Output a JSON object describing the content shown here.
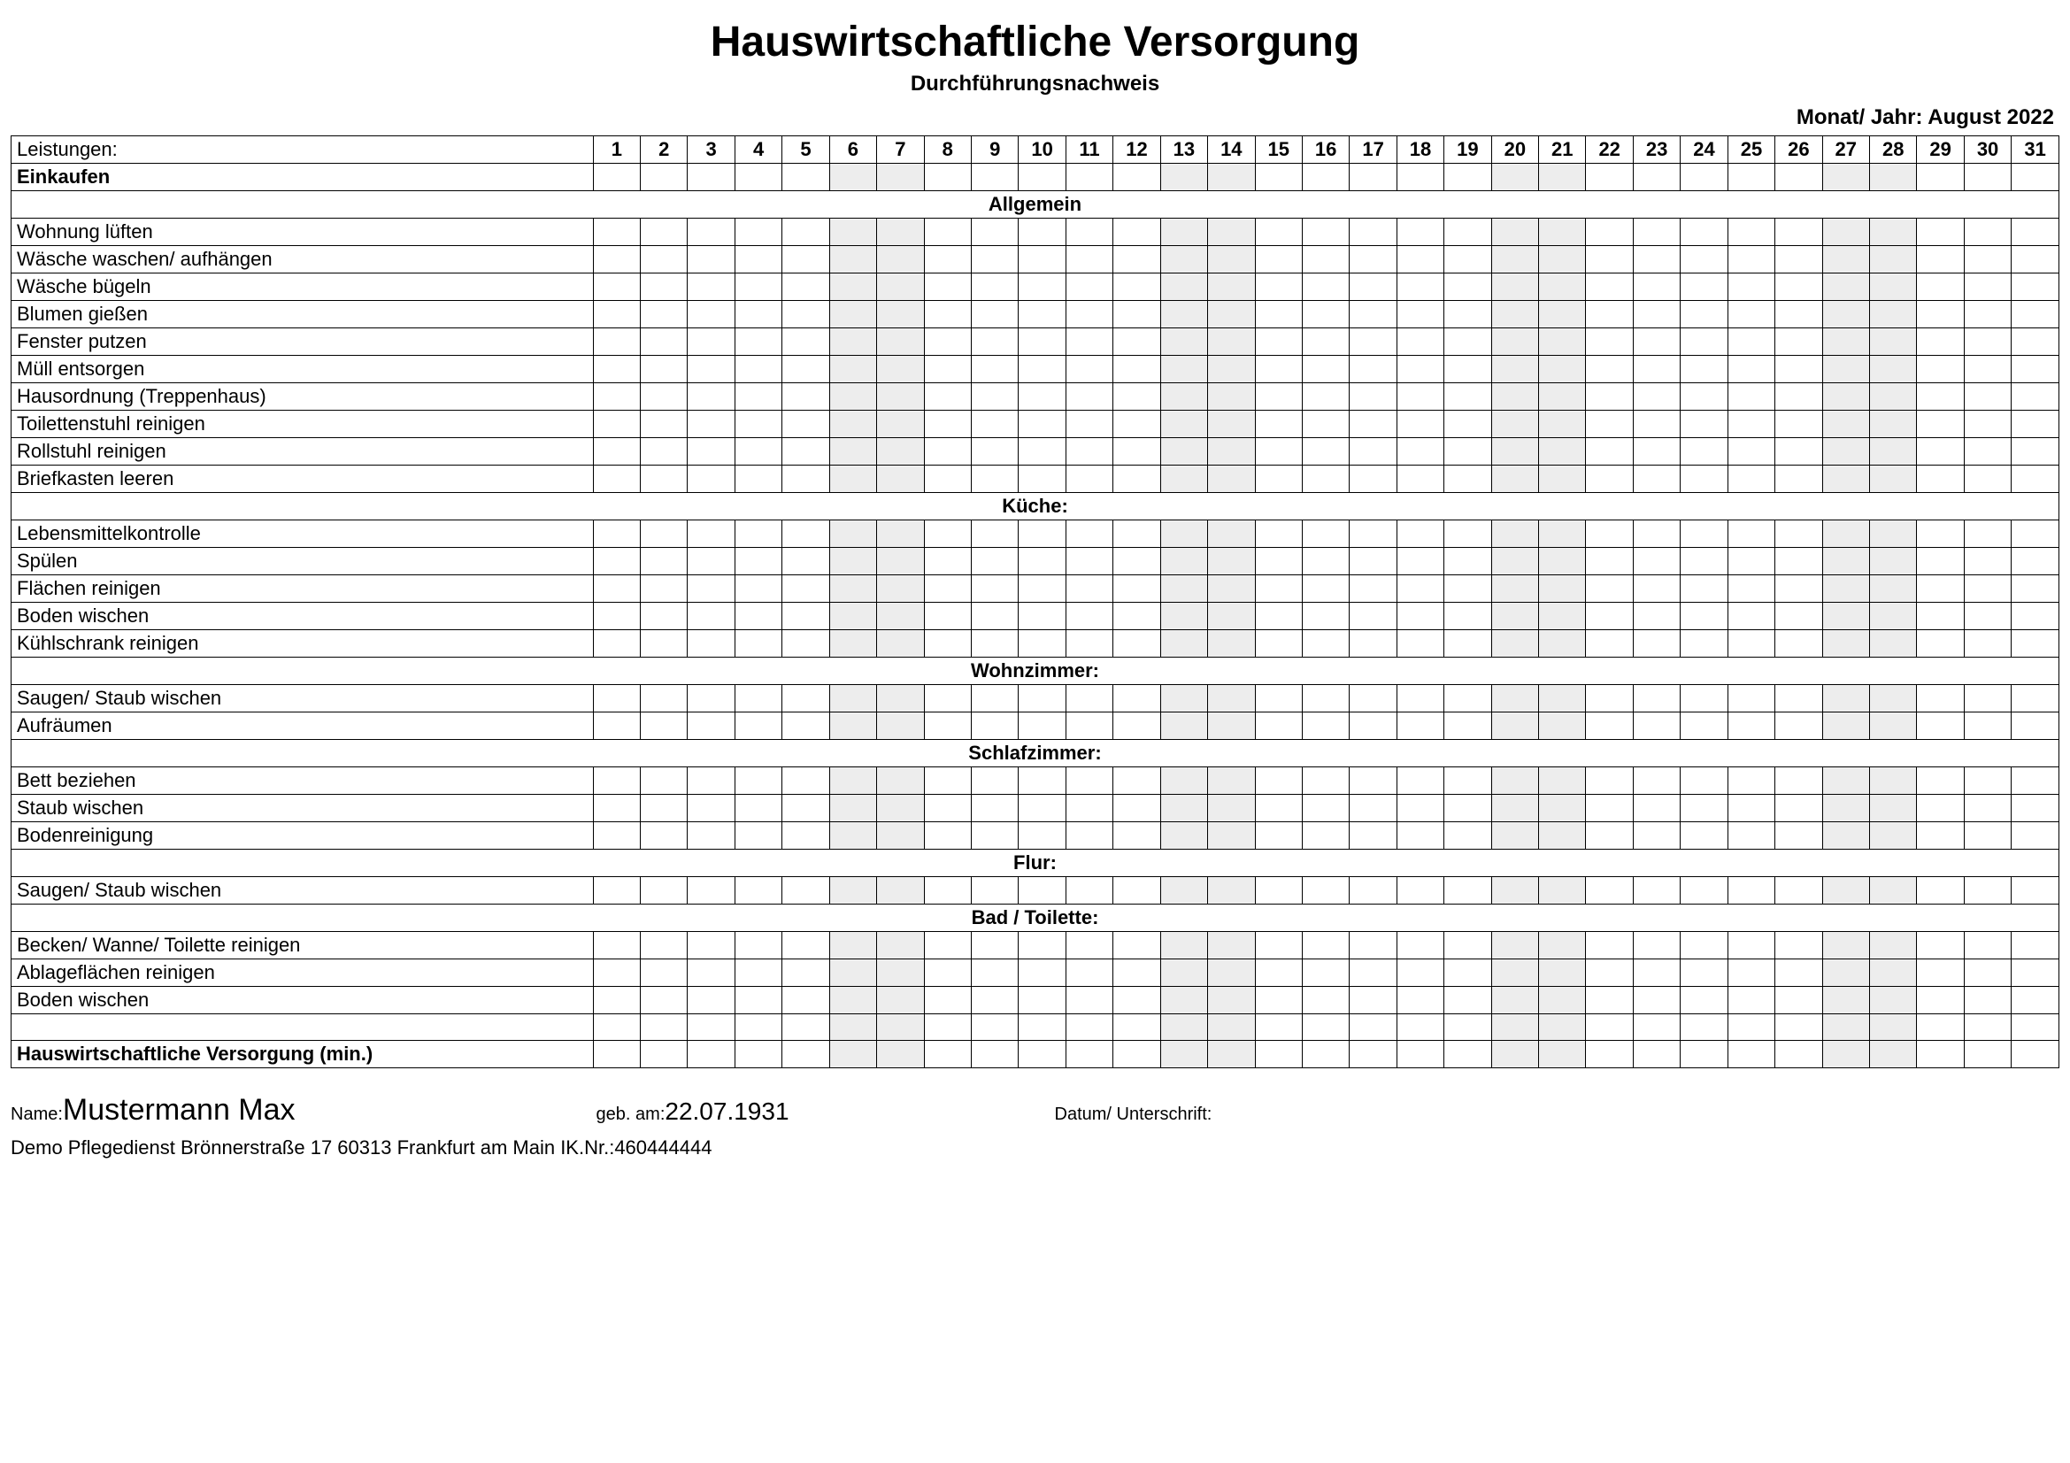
{
  "header": {
    "title": "Hauswirtschaftliche Versorgung",
    "subtitle": "Durchführungsnachweis",
    "month_label": "Monat/ Jahr: ",
    "month_value": "August 2022"
  },
  "table": {
    "col_label": "Leistungen:",
    "days": [
      "1",
      "2",
      "3",
      "4",
      "5",
      "6",
      "7",
      "8",
      "9",
      "10",
      "11",
      "12",
      "13",
      "14",
      "15",
      "16",
      "17",
      "18",
      "19",
      "20",
      "21",
      "22",
      "23",
      "24",
      "25",
      "26",
      "27",
      "28",
      "29",
      "30",
      "31"
    ],
    "shaded_days": [
      6,
      7,
      13,
      14,
      20,
      21,
      27,
      28
    ],
    "first_row": {
      "label": "Einkaufen",
      "bold": true
    },
    "sections": [
      {
        "title": "Allgemein",
        "rows": [
          "Wohnung lüften",
          "Wäsche waschen/ aufhängen",
          "Wäsche bügeln",
          "Blumen gießen",
          "Fenster putzen",
          "Müll entsorgen",
          "Hausordnung (Treppenhaus)",
          "Toilettenstuhl reinigen",
          "Rollstuhl reinigen",
          "Briefkasten leeren"
        ]
      },
      {
        "title": "Küche:",
        "rows": [
          "Lebensmittelkontrolle",
          "Spülen",
          "Flächen reinigen",
          "Boden wischen",
          "Kühlschrank reinigen"
        ]
      },
      {
        "title": "Wohnzimmer:",
        "rows": [
          "Saugen/ Staub wischen",
          "Aufräumen"
        ]
      },
      {
        "title": "Schlafzimmer:",
        "rows": [
          "Bett beziehen",
          "Staub wischen",
          "Bodenreinigung"
        ]
      },
      {
        "title": "Flur:",
        "rows": [
          "Saugen/ Staub wischen"
        ]
      },
      {
        "title": "Bad / Toilette:",
        "rows": [
          "Becken/ Wanne/ Toilette reinigen",
          "Ablageflächen reinigen",
          "Boden wischen",
          ""
        ]
      }
    ],
    "last_row": {
      "label": "Hauswirtschaftliche Versorgung (min.)",
      "bold": true
    }
  },
  "footer": {
    "name_label": "Name: ",
    "name_value": "Mustermann Max",
    "dob_label": "geb. am:",
    "dob_value": "22.07.1931",
    "sign_label": "Datum/ Unterschrift:",
    "org_line": "Demo Pflegedienst  Brönnerstraße 17  60313  Frankfurt am Main    IK.Nr.:460444444"
  },
  "colors": {
    "shaded_bg": "#ededed",
    "border": "#000000",
    "background": "#ffffff"
  }
}
